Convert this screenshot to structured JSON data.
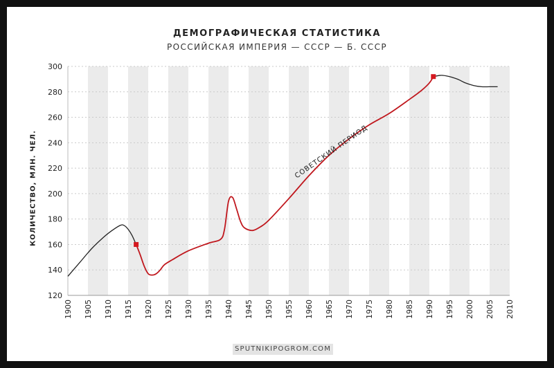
{
  "chart_data": {
    "type": "line",
    "title": "ДЕМОГРАФИЧЕСКАЯ СТАТИСТИКА",
    "subtitle": "РОССИЙСКАЯ ИМПЕРИЯ — СССР — Б. СССР",
    "ylabel": "КОЛИЧЕСТВО, МЛН. ЧЕЛ.",
    "xlabel": "",
    "xlim": [
      1900,
      2010
    ],
    "ylim": [
      120,
      300
    ],
    "x_ticks": [
      "1900",
      "1905",
      "1910",
      "1915",
      "1920",
      "1925",
      "1930",
      "1935",
      "1940",
      "1945",
      "1950",
      "1955",
      "1960",
      "1965",
      "1970",
      "1975",
      "1980",
      "1985",
      "1990",
      "1995",
      "2000",
      "2005",
      "2010"
    ],
    "y_ticks": [
      "120",
      "140",
      "160",
      "180",
      "200",
      "220",
      "240",
      "260",
      "280",
      "300"
    ],
    "grid": "vertical alternating bands, horizontal dashed lines",
    "annotation": "СОВЕТСКИЙ ПЕРИОД",
    "source": "SPUTNIKIPOGROM.COM",
    "colors": {
      "pre_soviet": "#222222",
      "soviet": "#c0171d",
      "post_soviet": "#222222",
      "band": "#ebebeb",
      "marker": "#d51920"
    },
    "series": [
      {
        "segment": "pre-soviet",
        "x": [
          1900,
          1903,
          1906,
          1909,
          1911,
          1913,
          1914,
          1915,
          1916,
          1917
        ],
        "y": [
          135,
          146,
          157,
          166,
          171,
          175,
          175,
          172,
          167,
          160
        ]
      },
      {
        "segment": "soviet",
        "x": [
          1917,
          1918,
          1919,
          1920,
          1921,
          1922,
          1923,
          1924,
          1926,
          1930,
          1935,
          1938,
          1939,
          1940,
          1941,
          1942,
          1943,
          1944,
          1946,
          1948,
          1950,
          1955,
          1960,
          1965,
          1970,
          1975,
          1980,
          1985,
          1988,
          1990,
          1991
        ],
        "y": [
          160,
          152,
          143,
          137,
          136,
          137,
          140,
          144,
          148,
          155,
          161,
          164,
          172,
          194,
          197,
          188,
          178,
          173,
          171,
          174,
          179,
          196,
          214,
          230,
          243,
          254,
          263,
          274,
          281,
          287,
          292
        ]
      },
      {
        "segment": "post-soviet",
        "x": [
          1991,
          1993,
          1995,
          1997,
          1999,
          2001,
          2003,
          2005,
          2007
        ],
        "y": [
          292,
          293,
          292,
          290,
          287,
          285,
          284,
          284,
          284
        ]
      }
    ],
    "markers": [
      {
        "x": 1917,
        "y": 160
      },
      {
        "x": 1991,
        "y": 292
      }
    ]
  }
}
